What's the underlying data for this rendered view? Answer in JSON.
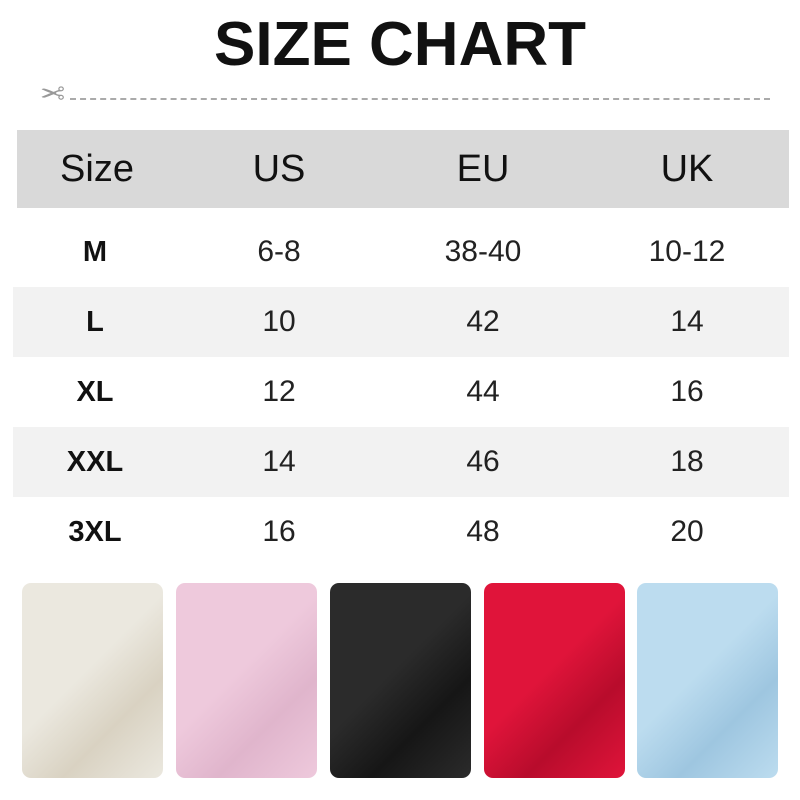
{
  "title": "SIZE CHART",
  "icons": {
    "cut_line": "scissors-icon"
  },
  "table": {
    "headers": [
      "Size",
      "US",
      "EU",
      "UK"
    ],
    "rows": [
      [
        "M",
        "6-8",
        "38-40",
        "10-12"
      ],
      [
        "L",
        "10",
        "42",
        "14"
      ],
      [
        "XL",
        "12",
        "44",
        "16"
      ],
      [
        "XXL",
        "14",
        "46",
        "18"
      ],
      [
        "3XL",
        "16",
        "48",
        "20"
      ]
    ]
  },
  "swatches": [
    {
      "color": "#ebe8df",
      "shade": "#d9d2c2"
    },
    {
      "color": "#eec9dc",
      "shade": "#e0b5cc"
    },
    {
      "color": "#2b2b2b",
      "shade": "#161616"
    },
    {
      "color": "#e0143a",
      "shade": "#b80c2c"
    },
    {
      "color": "#bcdcef",
      "shade": "#9ec6e0"
    }
  ]
}
